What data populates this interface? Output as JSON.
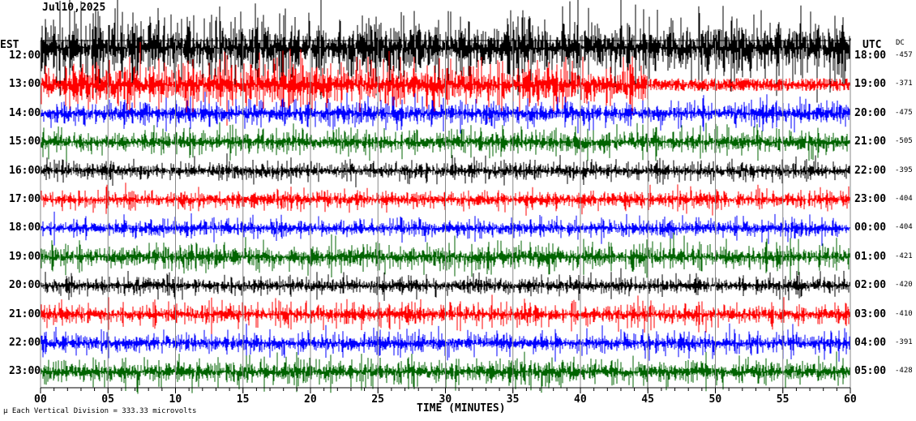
{
  "header": {
    "date": "Jul10,2025",
    "left_zone": "EST",
    "right_zone": "UTC",
    "dc_header": "DC"
  },
  "footer": {
    "scale_note": "Each Vertical Division =  333.33 microvolts",
    "xlabel": "TIME (MINUTES)"
  },
  "chart_data": {
    "type": "line",
    "title": "Jul10,2025",
    "xlabel": "TIME (MINUTES)",
    "xlim": [
      0,
      60
    ],
    "xticks": [
      "00",
      "05",
      "10",
      "15",
      "20",
      "25",
      "30",
      "35",
      "40",
      "45",
      "50",
      "55",
      "60"
    ],
    "grid": true,
    "rows": [
      {
        "est": "12:00",
        "utc": "18:00",
        "dc": "-457",
        "color": "#000000"
      },
      {
        "est": "13:00",
        "utc": "19:00",
        "dc": "-371",
        "color": "#ff0000"
      },
      {
        "est": "14:00",
        "utc": "20:00",
        "dc": "-475",
        "color": "#0000ff"
      },
      {
        "est": "15:00",
        "utc": "21:00",
        "dc": "-505",
        "color": "#006400"
      },
      {
        "est": "16:00",
        "utc": "22:00",
        "dc": "-395",
        "color": "#000000"
      },
      {
        "est": "17:00",
        "utc": "23:00",
        "dc": "-404",
        "color": "#ff0000"
      },
      {
        "est": "18:00",
        "utc": "00:00",
        "dc": "-404",
        "color": "#0000ff"
      },
      {
        "est": "19:00",
        "utc": "01:00",
        "dc": "-421",
        "color": "#006400"
      },
      {
        "est": "20:00",
        "utc": "02:00",
        "dc": "-420",
        "color": "#000000"
      },
      {
        "est": "21:00",
        "utc": "03:00",
        "dc": "-410",
        "color": "#ff0000"
      },
      {
        "est": "22:00",
        "utc": "04:00",
        "dc": "-391",
        "color": "#0000ff"
      },
      {
        "est": "23:00",
        "utc": "05:00",
        "dc": "-428",
        "color": "#006400"
      }
    ]
  }
}
